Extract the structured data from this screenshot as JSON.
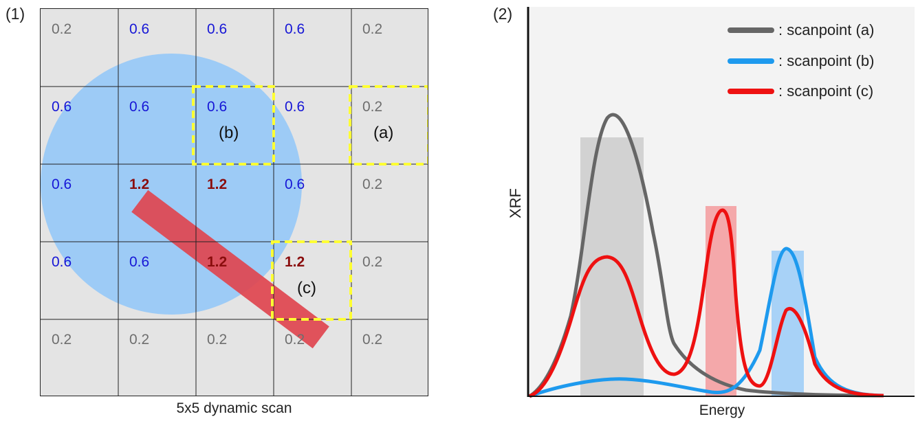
{
  "panel1": {
    "label": "(1)",
    "caption": "5x5 dynamic scan",
    "grid": [
      [
        "0.2",
        "0.6",
        "0.6",
        "0.6",
        "0.2"
      ],
      [
        "0.6",
        "0.6",
        "0.6",
        "0.6",
        "0.2"
      ],
      [
        "0.6",
        "1.2",
        "1.2",
        "0.6",
        "0.2"
      ],
      [
        "0.6",
        "0.6",
        "1.2",
        "1.2",
        "0.2"
      ],
      [
        "0.2",
        "0.2",
        "0.2",
        "0.2",
        "0.2"
      ]
    ],
    "scanpoints": [
      {
        "id": "a",
        "label": "(a)"
      },
      {
        "id": "b",
        "label": "(b)"
      },
      {
        "id": "c",
        "label": "(c)"
      }
    ],
    "colors": {
      "cell_bg": "#e4e4e4",
      "circle": "#9dcbf6",
      "bar": "#e0454f",
      "highlight": "#ffff33",
      "low_text": "#6e6e6e",
      "mid_text": "#1616d6",
      "high_text": "#8a0d0d"
    }
  },
  "panel2": {
    "label": "(2)",
    "xlabel": "Energy",
    "ylabel": "XRF",
    "legend": [
      {
        "label": ": scanpoint (a)",
        "color": "#666666"
      },
      {
        "label": ": scanpoint (b)",
        "color": "#1e9aee"
      },
      {
        "label": ": scanpoint (c)",
        "color": "#ee1111"
      }
    ]
  }
}
